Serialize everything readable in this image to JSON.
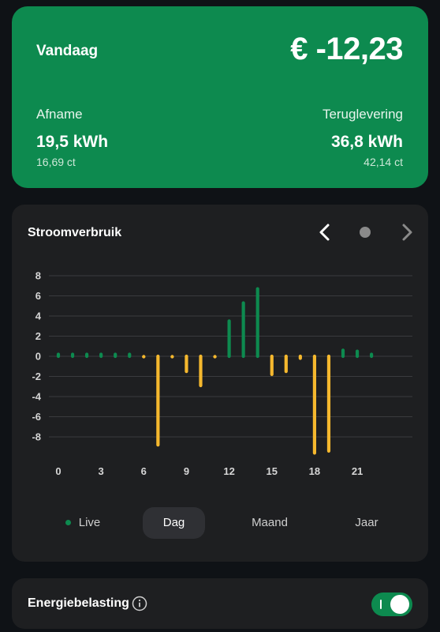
{
  "summary": {
    "title": "Vandaag",
    "amount": "€ -12,23",
    "afname": {
      "title": "Afname",
      "value": "19,5 kWh",
      "sub": "16,69 ct"
    },
    "teruglevering": {
      "title": "Teruglevering",
      "value": "36,8 kWh",
      "sub": "42,14 ct"
    }
  },
  "chart_card": {
    "title": "Stroomverbruik",
    "nav_prev_icon": "chevron-left-icon",
    "nav_next_icon": "chevron-right-icon"
  },
  "tabs": {
    "live": "Live",
    "dag": "Dag",
    "maand": "Maand",
    "jaar": "Jaar",
    "selected": "Dag"
  },
  "tax": {
    "label": "Energiebelasting",
    "info_icon": "info-icon",
    "toggle_on": true
  },
  "colors": {
    "accent": "#0d8a4f",
    "feed_in": "#0d8a4f",
    "consumption": "#f5b82e"
  },
  "chart_data": {
    "type": "bar",
    "title": "",
    "xlabel": "",
    "ylabel": "",
    "ylim": [
      -10,
      8
    ],
    "yticks": [
      8,
      6,
      4,
      2,
      0,
      -2,
      -4,
      -6,
      -8
    ],
    "xticks": [
      0,
      3,
      6,
      9,
      12,
      15,
      18,
      21
    ],
    "x": [
      0,
      1,
      2,
      3,
      4,
      5,
      6,
      7,
      8,
      9,
      10,
      11,
      12,
      13,
      14,
      15,
      16,
      17,
      18,
      19,
      20,
      21,
      22
    ],
    "values": [
      0.2,
      0.2,
      0.2,
      0.2,
      0.2,
      0.2,
      -0.1,
      -8.8,
      -0.1,
      -1.5,
      -2.9,
      -0.1,
      3.5,
      5.3,
      6.7,
      -1.8,
      -1.5,
      -0.2,
      -9.6,
      -9.4,
      0.6,
      0.5,
      0.2
    ],
    "grid": true,
    "legend": "none"
  }
}
